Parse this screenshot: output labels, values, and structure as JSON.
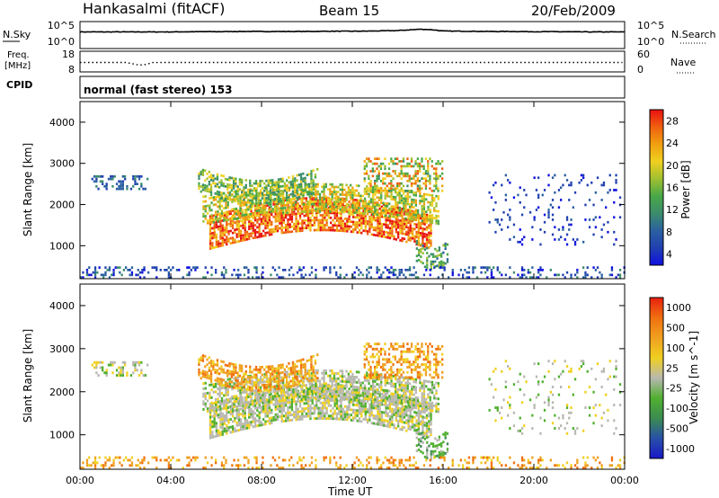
{
  "header": {
    "station": "Hankasalmi (fitACF)",
    "beam": "Beam 15",
    "date": "20/Feb/2009"
  },
  "chart_data": [
    {
      "type": "line",
      "panel": "noise",
      "left_label": "N.Sky",
      "right_label": "N.Search",
      "left_ticks": [
        "10^5",
        "10^0"
      ],
      "right_ticks": [
        "10^5",
        "10^0"
      ],
      "x_hours": [
        0,
        1,
        2,
        3,
        4,
        5,
        6,
        7,
        8,
        9,
        10,
        11,
        12,
        13,
        14,
        15,
        15.5,
        16,
        17,
        18,
        19,
        20,
        21,
        22,
        23,
        24
      ],
      "y_log": [
        3.3,
        3.3,
        3.3,
        3.3,
        3.3,
        3.35,
        3.35,
        3.4,
        3.4,
        3.4,
        3.4,
        3.45,
        3.45,
        3.5,
        3.6,
        3.9,
        3.8,
        3.5,
        3.45,
        3.4,
        3.4,
        3.35,
        3.35,
        3.3,
        3.3,
        3.3
      ],
      "ylim_log": [
        0,
        5
      ]
    },
    {
      "type": "line",
      "panel": "frequency",
      "left_label_lines": [
        "Freq.",
        "[MHz]"
      ],
      "right_label": "Nave",
      "left_ticks": [
        "18",
        "8"
      ],
      "right_ticks": [
        "60",
        "0"
      ],
      "x_hours": [
        0,
        2,
        2.5,
        2.8,
        3.2,
        4,
        8,
        12,
        16,
        20,
        24
      ],
      "freq_mhz": [
        12.5,
        12.5,
        11.2,
        11.0,
        12.4,
        12.5,
        12.5,
        12.5,
        12.5,
        12.5,
        12.5
      ],
      "ylim": [
        8,
        18
      ]
    },
    {
      "type": "heatmap",
      "panel": "cpid",
      "left_label": "CPID",
      "text": "normal (fast stereo) 153"
    },
    {
      "type": "heatmap",
      "panel": "power",
      "ylabel": "Slant Range [km]",
      "y_ticks": [
        "4000",
        "3000",
        "2000",
        "1000"
      ],
      "ylim": [
        200,
        4500
      ],
      "colorbar": {
        "label": "Power [dB]",
        "ticks": [
          "28",
          "24",
          "20",
          "16",
          "12",
          "8",
          "4"
        ],
        "range": [
          0,
          30
        ],
        "colors": [
          "#1010e0",
          "#2040b0",
          "#2a60a0",
          "#3c8c6c",
          "#48a848",
          "#a0c030",
          "#f0d020",
          "#f0a010",
          "#f06010",
          "#e81010"
        ]
      }
    },
    {
      "type": "heatmap",
      "panel": "velocity",
      "ylabel": "Slant Range [km]",
      "y_ticks": [
        "4000",
        "3000",
        "2000",
        "1000"
      ],
      "ylim": [
        200,
        4500
      ],
      "colorbar": {
        "label": "Velocity [m s^-1]",
        "ticks": [
          "1000",
          "500",
          "100",
          "25",
          "-25",
          "-100",
          "-500",
          "-1000"
        ],
        "range": [
          -1000,
          1000
        ],
        "colors": [
          "#1818c8",
          "#2850a8",
          "#3c8c50",
          "#50b030",
          "#b8b8b0",
          "#f0d020",
          "#f0a020",
          "#f07010",
          "#e82010"
        ]
      },
      "x_ticks": [
        "00:00",
        "04:00",
        "08:00",
        "12:00",
        "16:00",
        "20:00",
        "00:00"
      ],
      "xlabel": "Time UT",
      "xlim_hours": [
        0,
        24
      ]
    }
  ]
}
